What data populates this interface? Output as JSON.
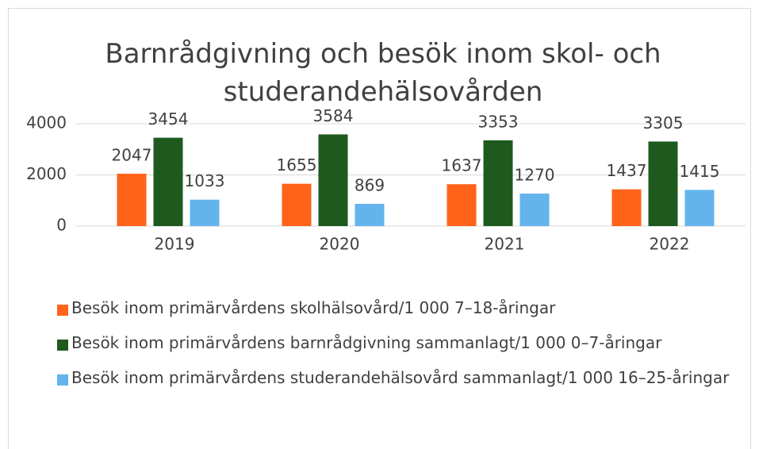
{
  "chart_data": {
    "type": "bar",
    "title": "Barnrådgivning och besök inom skol- och studerandehälsovården",
    "categories": [
      "2019",
      "2020",
      "2021",
      "2022"
    ],
    "series": [
      {
        "name": "Besök inom primärvårdens skolhälsovård/1 000 7–18-åringar",
        "color": "#ff6319",
        "values": [
          2047,
          1655,
          1637,
          1437
        ]
      },
      {
        "name": "Besök inom primärvårdens barnrådgivning sammanlagt/1 000 0–7-åringar",
        "color": "#1e5a1e",
        "values": [
          3454,
          3584,
          3353,
          3305
        ]
      },
      {
        "name": "Besök inom primärvårdens studerandehälsovård sammanlagt/1 000 16–25-åringar",
        "color": "#63b4ec",
        "values": [
          1033,
          869,
          1270,
          1415
        ]
      }
    ],
    "ylim": [
      0,
      4000
    ],
    "yticks": [
      0,
      2000,
      4000
    ],
    "grid": true,
    "legend": "bottom"
  }
}
